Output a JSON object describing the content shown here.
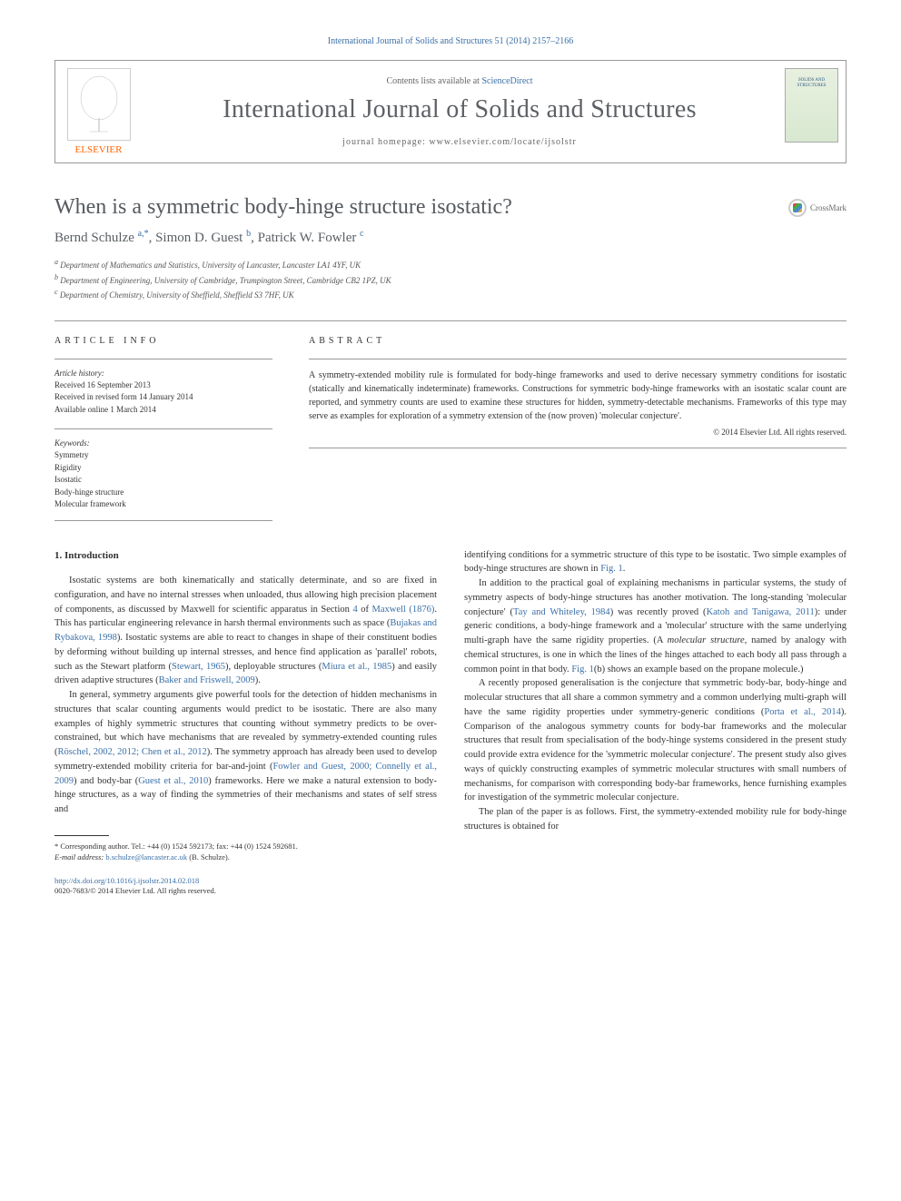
{
  "top_citation": "International Journal of Solids and Structures 51 (2014) 2157–2166",
  "header": {
    "contents_prefix": "Contents lists available at ",
    "contents_link": "ScienceDirect",
    "journal_name": "International Journal of Solids and Structures",
    "homepage_prefix": "journal homepage: ",
    "homepage_url": "www.elsevier.com/locate/ijsolstr",
    "publisher": "ELSEVIER",
    "cover_text": "SOLIDS AND STRUCTURES"
  },
  "crossmark_label": "CrossMark",
  "title": "When is a symmetric body-hinge structure isostatic?",
  "authors_html": "Bernd Schulze <sup>a,*</sup>, Simon D. Guest <sup>b</sup>, Patrick W. Fowler <sup>c</sup>",
  "affiliations": [
    "a Department of Mathematics and Statistics, University of Lancaster, Lancaster LA1 4YF, UK",
    "b Department of Engineering, University of Cambridge, Trumpington Street, Cambridge CB2 1PZ, UK",
    "c Department of Chemistry, University of Sheffield, Sheffield S3 7HF, UK"
  ],
  "info": {
    "heading_left": "ARTICLE INFO",
    "heading_right": "ABSTRACT",
    "history_label": "Article history:",
    "history": [
      "Received 16 September 2013",
      "Received in revised form 14 January 2014",
      "Available online 1 March 2014"
    ],
    "keywords_label": "Keywords:",
    "keywords": [
      "Symmetry",
      "Rigidity",
      "Isostatic",
      "Body-hinge structure",
      "Molecular framework"
    ]
  },
  "abstract": "A symmetry-extended mobility rule is formulated for body-hinge frameworks and used to derive necessary symmetry conditions for isostatic (statically and kinematically indeterminate) frameworks. Constructions for symmetric body-hinge frameworks with an isostatic scalar count are reported, and symmetry counts are used to examine these structures for hidden, symmetry-detectable mechanisms. Frameworks of this type may serve as examples for exploration of a symmetry extension of the (now proven) 'molecular conjecture'.",
  "copyright": "© 2014 Elsevier Ltd. All rights reserved.",
  "section1_heading": "1. Introduction",
  "col1": {
    "p1a": "Isostatic systems are both kinematically and statically determinate, and so are fixed in configuration, and have no internal stresses when unloaded, thus allowing high precision placement of components, as discussed by Maxwell for scientific apparatus in Section ",
    "p1_link1": "4",
    "p1b": " of ",
    "p1_link2": "Maxwell (1876)",
    "p1c": ". This has particular engineering relevance in harsh thermal environments such as space (",
    "p1_link3": "Bujakas and Rybakova, 1998",
    "p1d": "). Isostatic systems are able to react to changes in shape of their constituent bodies by deforming without building up internal stresses, and hence find application as 'parallel' robots, such as the Stewart platform (",
    "p1_link4": "Stewart, 1965",
    "p1e": "), deployable structures (",
    "p1_link5": "Miura et al., 1985",
    "p1f": ") and easily driven adaptive structures (",
    "p1_link6": "Baker and Friswell, 2009",
    "p1g": ").",
    "p2a": "In general, symmetry arguments give powerful tools for the detection of hidden mechanisms in structures that scalar counting arguments would predict to be isostatic. There are also many examples of highly symmetric structures that counting without symmetry predicts to be over-constrained, but which have mechanisms that are revealed by symmetry-extended counting rules (",
    "p2_link1": "Röschel, 2002, 2012; Chen et al., 2012",
    "p2b": "). The symmetry approach has already been used to develop symmetry-extended mobility criteria for bar-and-joint (",
    "p2_link2": "Fowler and Guest, 2000; Connelly et al., 2009",
    "p2c": ") and body-bar (",
    "p2_link3": "Guest et al., 2010",
    "p2d": ") frameworks. Here we make a natural extension to body-hinge structures, as a way of finding the symmetries of their mechanisms and states of self stress and"
  },
  "col2": {
    "p1a": "identifying conditions for a symmetric structure of this type to be isostatic. Two simple examples of body-hinge structures are shown in ",
    "p1_link1": "Fig. 1",
    "p1b": ".",
    "p2a": "In addition to the practical goal of explaining mechanisms in particular systems, the study of symmetry aspects of body-hinge structures has another motivation. The long-standing 'molecular conjecture' (",
    "p2_link1": "Tay and Whiteley, 1984",
    "p2b": ") was recently proved (",
    "p2_link2": "Katoh and Tanigawa, 2011",
    "p2c": "): under generic conditions, a body-hinge framework and a 'molecular' structure with the same underlying multi-graph have the same rigidity properties. (A ",
    "p2_em": "molecular structure",
    "p2d": ", named by analogy with chemical structures, is one in which the lines of the hinges attached to each body all pass through a common point in that body. ",
    "p2_link3": "Fig. 1",
    "p2e": "(b) shows an example based on the propane molecule.)",
    "p3a": "A recently proposed generalisation is the conjecture that symmetric body-bar, body-hinge and molecular structures that all share a common symmetry and a common underlying multi-graph will have the same rigidity properties under symmetry-generic conditions (",
    "p3_link1": "Porta et al., 2014",
    "p3b": "). Comparison of the analogous symmetry counts for body-bar frameworks and the molecular structures that result from specialisation of the body-hinge systems considered in the present study could provide extra evidence for the 'symmetric molecular conjecture'. The present study also gives ways of quickly constructing examples of symmetric molecular structures with small numbers of mechanisms, for comparison with corresponding body-bar frameworks, hence furnishing examples for investigation of the symmetric molecular conjecture.",
    "p4": "The plan of the paper is as follows. First, the symmetry-extended mobility rule for body-hinge structures is obtained for"
  },
  "footnote": {
    "corr": "* Corresponding author. Tel.: +44 (0) 1524 592173; fax: +44 (0) 1524 592681.",
    "email_label": "E-mail address: ",
    "email": "b.schulze@lancaster.ac.uk",
    "email_suffix": " (B. Schulze)."
  },
  "footer": {
    "doi": "http://dx.doi.org/10.1016/j.ijsolstr.2014.02.018",
    "issn": "0020-7683/© 2014 Elsevier Ltd. All rights reserved."
  },
  "colors": {
    "link": "#3a6fa7",
    "heading_gray": "#5d6166",
    "elsevier_orange": "#ff6600"
  }
}
